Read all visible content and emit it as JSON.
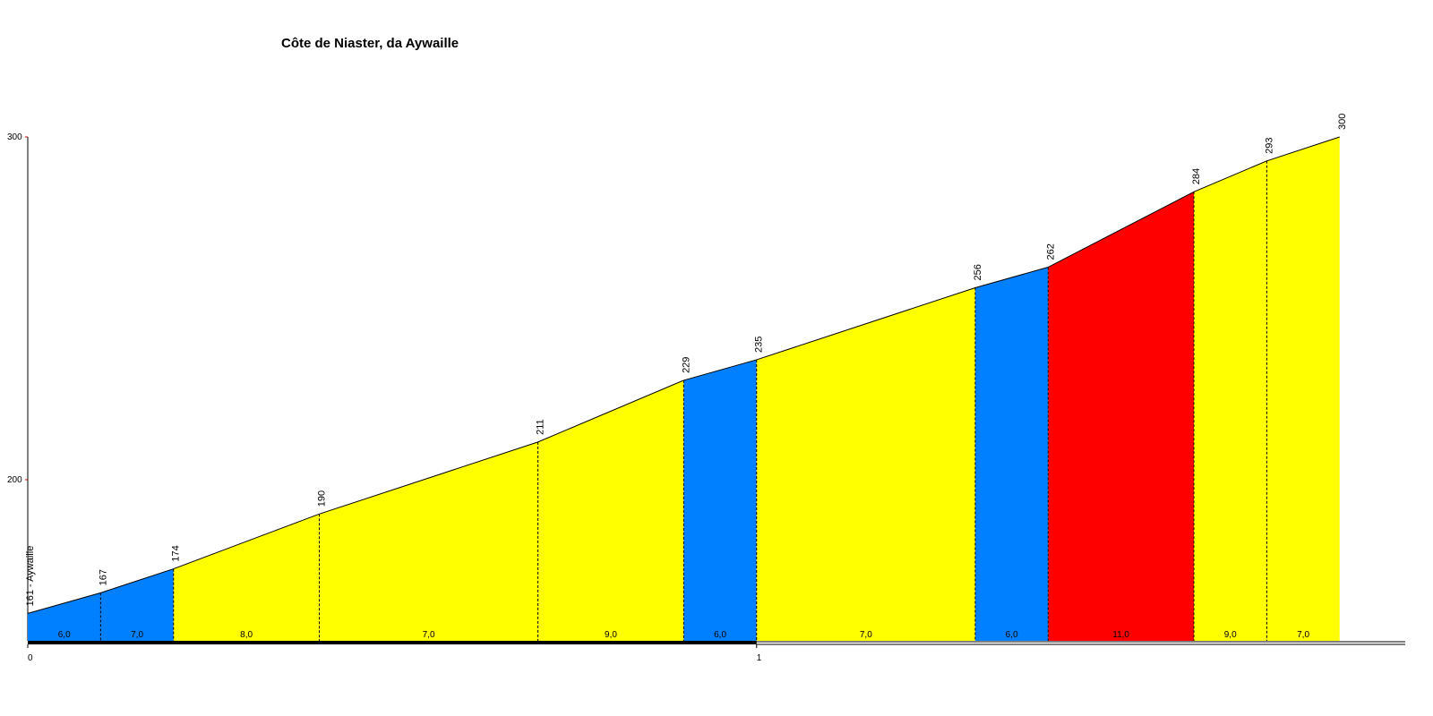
{
  "chart_data": {
    "type": "profile",
    "title": "Côte de Niaster, da Aywaille",
    "x": [
      0,
      0.1,
      0.2,
      0.4,
      0.7,
      0.9,
      1.0,
      1.3,
      1.4,
      1.6,
      1.7,
      1.8
    ],
    "values": [
      161,
      167,
      174,
      190,
      211,
      229,
      235,
      256,
      262,
      284,
      293,
      300
    ],
    "value_labels": [
      "161 - Aywaille",
      "167",
      "174",
      "190",
      "211",
      "229",
      "235",
      "256",
      "262",
      "284",
      "293",
      "300"
    ],
    "gradients": [
      6,
      7,
      8,
      7,
      9,
      6,
      7,
      6,
      11,
      9,
      7
    ],
    "gradient_labels": [
      "6,0",
      "7,0",
      "8,0",
      "7,0",
      "9,0",
      "6,0",
      "7,0",
      "6,0",
      "11,0",
      "9,0",
      "7,0"
    ],
    "segment_colors": [
      "#0080ff",
      "#0080ff",
      "#ffff00",
      "#ffff00",
      "#ffff00",
      "#0080ff",
      "#ffff00",
      "#0080ff",
      "#ff0000",
      "#ffff00",
      "#ffff00"
    ],
    "xlim": [
      0,
      1.89
    ],
    "xticks": [
      0,
      1
    ],
    "ylim": [
      153,
      300
    ],
    "yticks": [
      200,
      300
    ]
  }
}
